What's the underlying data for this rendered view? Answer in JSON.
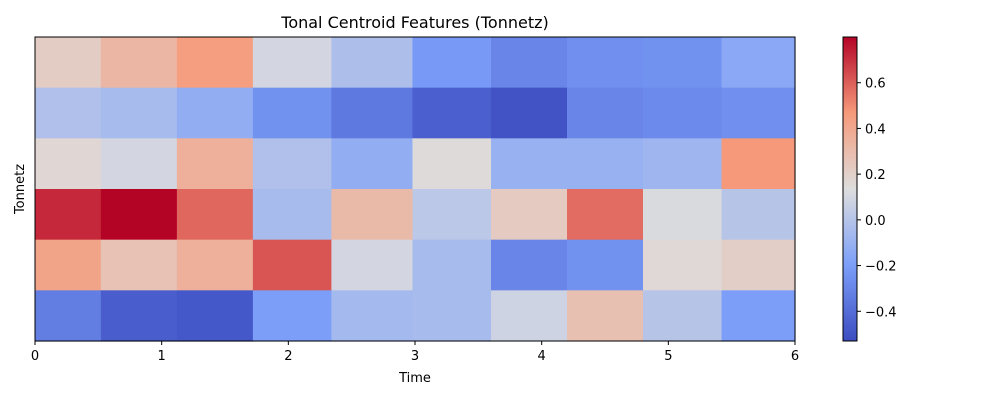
{
  "chart_data": {
    "type": "heatmap",
    "title": "Tonal Centroid Features (Tonnetz)",
    "xlabel": "Time",
    "ylabel": "Tonnetz",
    "xlim": [
      0,
      6
    ],
    "x_ticks": [
      "0",
      "1",
      "2",
      "3",
      "4",
      "5",
      "6"
    ],
    "colorbar": {
      "vmin": -0.53,
      "vmax": 0.8,
      "ticks": [
        "−0.4",
        "−0.2",
        "0.0",
        "0.2",
        "0.4",
        "0.6"
      ],
      "tick_values": [
        -0.4,
        -0.2,
        0.0,
        0.2,
        0.4,
        0.6
      ],
      "colormap": "coolwarm"
    },
    "grid": false,
    "rows_top_to_bottom": [
      [
        0.22,
        0.33,
        0.45,
        0.1,
        -0.03,
        -0.22,
        -0.3,
        -0.26,
        -0.25,
        -0.15
      ],
      [
        -0.02,
        -0.05,
        -0.12,
        -0.25,
        -0.35,
        -0.45,
        -0.5,
        -0.3,
        -0.28,
        -0.26
      ],
      [
        0.17,
        0.1,
        0.36,
        -0.02,
        -0.12,
        0.15,
        -0.1,
        -0.1,
        -0.08,
        0.47
      ],
      [
        0.72,
        0.8,
        0.58,
        -0.05,
        0.31,
        0.02,
        0.23,
        0.57,
        0.12,
        0.0
      ],
      [
        0.42,
        0.27,
        0.36,
        0.62,
        0.1,
        -0.05,
        -0.3,
        -0.25,
        0.16,
        0.21
      ],
      [
        -0.33,
        -0.46,
        -0.48,
        -0.2,
        -0.06,
        -0.05,
        0.08,
        0.28,
        0.0,
        -0.2
      ]
    ],
    "column_edges": [
      0,
      0.52,
      1.12,
      1.72,
      2.34,
      2.98,
      3.6,
      4.2,
      4.8,
      5.42,
      6.0
    ]
  }
}
